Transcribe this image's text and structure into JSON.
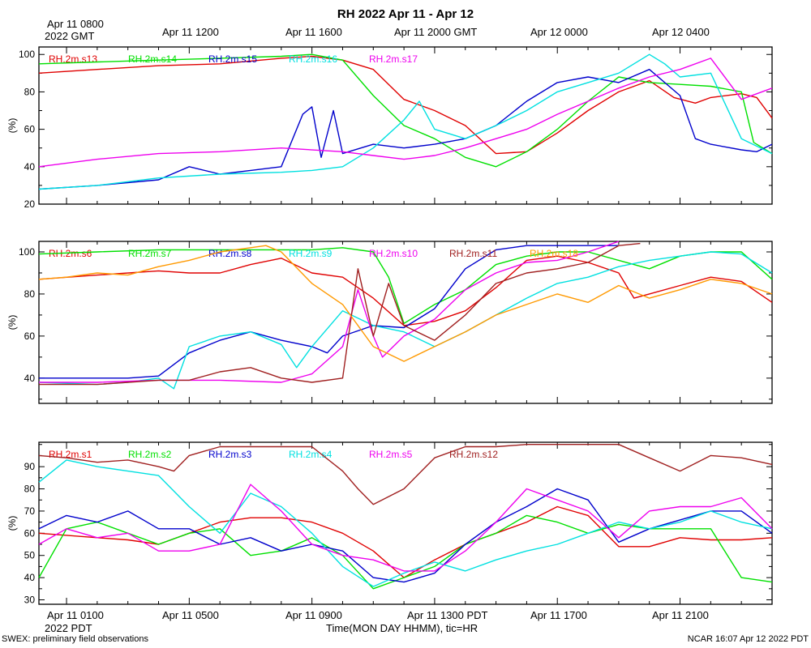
{
  "title": "RH 2022 Apr 11 - Apr 12",
  "gmt_axis": {
    "labels": [
      "Apr 11 0800",
      "Apr 11 1200",
      "Apr 11 1600",
      "Apr 11 2000 GMT",
      "Apr 12 0000",
      "Apr 12 0400"
    ],
    "zone_label": "2022 GMT"
  },
  "pdt_axis": {
    "labels": [
      "Apr 11 0100",
      "Apr 11 0500",
      "Apr 11 0900",
      "Apr 11 1300 PDT",
      "Apr 11 1700",
      "Apr 11 2100"
    ],
    "zone_label": "2022 PDT"
  },
  "xlabel": "Time(MON DAY HHMM), tic=HR",
  "footer_left": "SWEX: preliminary field observations",
  "footer_right": "NCAR 16:07 Apr 12 2022 PDT",
  "chart_data": [
    {
      "type": "line",
      "panel": "top",
      "ylabel": "(%)",
      "x_unit": "hours since Apr 11 0000 PDT",
      "xlim": [
        0.1,
        24.0
      ],
      "ylim": [
        20,
        104
      ],
      "yticks": [
        20,
        40,
        60,
        80,
        100
      ],
      "series": [
        {
          "name": "RH.2m.s13",
          "color": "#e00000",
          "x": [
            0.1,
            2,
            4,
            6,
            8,
            9,
            10,
            11,
            12,
            13,
            14,
            15,
            16,
            17,
            18,
            19,
            20,
            20.8,
            21.5,
            22,
            23,
            23.5,
            24
          ],
          "y": [
            90,
            92,
            94,
            95,
            98,
            99,
            97,
            92,
            76,
            70,
            62,
            47,
            48,
            58,
            70,
            80,
            86,
            77,
            74,
            77,
            79,
            77,
            66
          ]
        },
        {
          "name": "RH.2m.s14",
          "color": "#00e000",
          "x": [
            0.1,
            2,
            4,
            6,
            8,
            9,
            10,
            11,
            12,
            13,
            14,
            15,
            16,
            17,
            18,
            19,
            20,
            21,
            22,
            23,
            23.4,
            24
          ],
          "y": [
            95,
            96,
            97,
            98,
            99,
            100,
            97,
            78,
            62,
            55,
            45,
            40,
            48,
            60,
            75,
            88,
            85,
            84,
            83,
            80,
            53,
            47
          ]
        },
        {
          "name": "RH.2m.s15",
          "color": "#0000cc",
          "x": [
            0.1,
            2,
            4,
            5,
            6,
            7,
            8,
            8.7,
            9,
            9.3,
            9.7,
            10,
            11,
            12,
            13,
            14,
            15,
            16,
            17,
            18,
            19,
            20,
            21,
            21.5,
            22,
            23,
            23.5,
            24
          ],
          "y": [
            28,
            30,
            33,
            40,
            36,
            38,
            40,
            68,
            72,
            45,
            70,
            47,
            52,
            50,
            52,
            55,
            62,
            75,
            85,
            88,
            85,
            92,
            78,
            55,
            52,
            49,
            48,
            52
          ]
        },
        {
          "name": "RH.2m.s16",
          "color": "#00e0e0",
          "x": [
            0.1,
            2,
            4,
            6,
            8,
            9,
            10,
            11,
            12,
            12.5,
            13,
            14,
            15,
            16,
            17,
            18,
            19,
            20,
            20.5,
            21,
            22,
            23,
            24
          ],
          "y": [
            28,
            30,
            34,
            36,
            37,
            38,
            40,
            50,
            65,
            75,
            60,
            55,
            62,
            70,
            80,
            85,
            90,
            100,
            95,
            88,
            90,
            55,
            47
          ]
        },
        {
          "name": "RH.2m.s17",
          "color": "#ee00ee",
          "x": [
            0.1,
            2,
            4,
            6,
            8,
            10,
            11,
            12,
            13,
            14,
            15,
            16,
            17,
            18,
            19,
            20,
            21,
            22,
            23,
            24
          ],
          "y": [
            40,
            44,
            47,
            48,
            50,
            48,
            46,
            44,
            46,
            50,
            55,
            60,
            68,
            75,
            82,
            88,
            92,
            98,
            76,
            82
          ]
        }
      ]
    },
    {
      "type": "line",
      "panel": "middle",
      "ylabel": "(%)",
      "x_unit": "hours since Apr 11 0000 PDT",
      "xlim": [
        0.1,
        24.0
      ],
      "ylim": [
        28,
        105
      ],
      "yticks": [
        40,
        60,
        80,
        100
      ],
      "series": [
        {
          "name": "RH.2m.s6",
          "color": "#e00000",
          "x": [
            0.1,
            2,
            4,
            5,
            6,
            7,
            8,
            9,
            10,
            11,
            12,
            13,
            14,
            15,
            16,
            17,
            18,
            19,
            19.5,
            20,
            21,
            22,
            23,
            24
          ],
          "y": [
            87,
            89,
            91,
            90,
            90,
            94,
            97,
            90,
            88,
            78,
            65,
            67,
            72,
            83,
            96,
            98,
            95,
            90,
            78,
            80,
            84,
            88,
            86,
            76
          ]
        },
        {
          "name": "RH.2m.s7",
          "color": "#00e000",
          "x": [
            0.1,
            2,
            4,
            6,
            8,
            9,
            10,
            11,
            11.5,
            12,
            13,
            14,
            15,
            16,
            17,
            18,
            19,
            20,
            21,
            22,
            23,
            24
          ],
          "y": [
            99,
            100,
            101,
            101,
            101,
            101,
            102,
            100,
            88,
            66,
            75,
            82,
            94,
            98,
            100,
            100,
            96,
            92,
            98,
            100,
            100,
            87
          ]
        },
        {
          "name": "RH.2m.s8",
          "color": "#0000cc",
          "x": [
            0.1,
            2,
            3,
            4,
            5,
            6,
            7,
            8,
            9,
            9.5,
            10,
            11,
            12,
            13,
            14,
            15,
            16,
            17,
            18,
            19
          ],
          "y": [
            40,
            40,
            40,
            41,
            52,
            58,
            62,
            58,
            55,
            52,
            60,
            65,
            64,
            73,
            92,
            101,
            103,
            103,
            103,
            103
          ]
        },
        {
          "name": "RH.2m.s9",
          "color": "#00e0e0",
          "x": [
            0.1,
            2,
            3,
            4,
            4.5,
            5,
            6,
            7,
            8,
            8.5,
            9,
            10,
            11,
            12,
            13,
            14,
            15,
            16,
            17,
            18,
            19,
            20,
            21,
            22,
            23,
            24
          ],
          "y": [
            38,
            37,
            38,
            40,
            35,
            55,
            60,
            62,
            56,
            45,
            55,
            72,
            65,
            62,
            55,
            62,
            70,
            78,
            85,
            88,
            93,
            96,
            98,
            100,
            99,
            90
          ]
        },
        {
          "name": "RH.2m.s10",
          "color": "#ee00ee",
          "x": [
            0.1,
            2,
            4,
            6,
            8,
            9,
            10,
            10.5,
            11,
            11.3,
            12,
            13,
            14,
            15,
            16,
            17,
            18,
            19
          ],
          "y": [
            38,
            38,
            39,
            39,
            38,
            42,
            55,
            82,
            60,
            50,
            60,
            68,
            82,
            90,
            95,
            96,
            100,
            105
          ]
        },
        {
          "name": "RH.2m.s11",
          "color": "#a02020",
          "x": [
            0.1,
            2,
            4,
            5,
            6,
            7,
            8,
            9,
            10,
            10.5,
            11,
            11.5,
            12,
            13,
            14,
            15,
            16,
            17,
            18,
            19,
            19.7
          ],
          "y": [
            37,
            37,
            39,
            39,
            43,
            45,
            40,
            38,
            40,
            92,
            60,
            85,
            65,
            58,
            70,
            85,
            90,
            92,
            95,
            103,
            104
          ]
        },
        {
          "name": "RH.2m.s18",
          "color": "#ff9900",
          "x": [
            0.1,
            1,
            2,
            3,
            4,
            5,
            6,
            7,
            7.5,
            8,
            9,
            10,
            11,
            12,
            13,
            14,
            15,
            16,
            17,
            18,
            19,
            20,
            21,
            22,
            23,
            24
          ],
          "y": [
            87,
            88,
            90,
            89,
            93,
            96,
            100,
            102,
            103,
            100,
            85,
            75,
            55,
            48,
            55,
            62,
            70,
            75,
            80,
            76,
            84,
            78,
            82,
            87,
            85,
            80
          ]
        }
      ]
    },
    {
      "type": "line",
      "panel": "bottom",
      "ylabel": "(%)",
      "x_unit": "hours since Apr 11 0000 PDT",
      "xlim": [
        0.1,
        24.0
      ],
      "ylim": [
        28,
        101
      ],
      "yticks": [
        30,
        40,
        50,
        60,
        70,
        80,
        90
      ],
      "series": [
        {
          "name": "RH.2m.s1",
          "color": "#e00000",
          "x": [
            0.1,
            2,
            3,
            4,
            5,
            6,
            7,
            8,
            9,
            10,
            11,
            12,
            13,
            14,
            15,
            16,
            17,
            18,
            19,
            20,
            21,
            22,
            23,
            24
          ],
          "y": [
            60,
            58,
            57,
            55,
            60,
            65,
            67,
            67,
            65,
            60,
            52,
            40,
            48,
            55,
            60,
            65,
            72,
            68,
            54,
            54,
            58,
            57,
            57,
            58
          ]
        },
        {
          "name": "RH.2m.s2",
          "color": "#00e000",
          "x": [
            0.1,
            1,
            2,
            3,
            4,
            5,
            6,
            7,
            8,
            9,
            10,
            11,
            12,
            13,
            14,
            15,
            16,
            17,
            18,
            19,
            20,
            21,
            22,
            23,
            24
          ],
          "y": [
            40,
            62,
            65,
            60,
            55,
            60,
            62,
            50,
            52,
            58,
            50,
            35,
            40,
            45,
            55,
            60,
            68,
            65,
            60,
            64,
            62,
            62,
            62,
            40,
            38
          ]
        },
        {
          "name": "RH.2m.s3",
          "color": "#0000cc",
          "x": [
            0.1,
            1,
            2,
            3,
            4,
            5,
            6,
            7,
            8,
            9,
            10,
            11,
            12,
            13,
            14,
            15,
            16,
            17,
            18,
            19,
            20,
            21,
            22,
            23,
            24
          ],
          "y": [
            62,
            68,
            65,
            70,
            62,
            62,
            55,
            58,
            52,
            55,
            52,
            40,
            38,
            42,
            55,
            65,
            72,
            80,
            75,
            56,
            62,
            66,
            70,
            70,
            60
          ]
        },
        {
          "name": "RH.2m.s4",
          "color": "#00e0e0",
          "x": [
            0.1,
            1,
            2,
            3,
            4,
            5,
            6,
            7,
            8,
            9,
            10,
            11,
            12,
            13,
            14,
            15,
            16,
            17,
            18,
            19,
            20,
            21,
            22,
            23,
            24
          ],
          "y": [
            83,
            93,
            90,
            88,
            86,
            72,
            60,
            78,
            72,
            60,
            45,
            36,
            42,
            47,
            43,
            48,
            52,
            55,
            60,
            65,
            62,
            65,
            70,
            65,
            62
          ]
        },
        {
          "name": "RH.2m.s5",
          "color": "#ee00ee",
          "x": [
            0.1,
            1,
            2,
            3,
            4,
            5,
            6,
            7,
            8,
            9,
            10,
            11,
            12,
            13,
            14,
            15,
            16,
            17,
            18,
            19,
            20,
            21,
            22,
            23,
            24
          ],
          "y": [
            55,
            62,
            58,
            60,
            52,
            52,
            55,
            82,
            70,
            55,
            50,
            48,
            43,
            43,
            52,
            65,
            80,
            75,
            70,
            58,
            70,
            72,
            72,
            76,
            62
          ]
        },
        {
          "name": "RH.2m.s12",
          "color": "#a02020",
          "x": [
            0.1,
            1,
            2,
            3,
            4,
            4.5,
            5,
            6,
            7,
            8,
            9,
            10,
            10.5,
            11,
            12,
            13,
            14,
            15,
            16,
            17,
            18,
            19,
            20,
            21,
            22,
            23,
            24
          ],
          "y": [
            95,
            94,
            92,
            93,
            90,
            88,
            95,
            99,
            99,
            99,
            99,
            88,
            80,
            73,
            80,
            94,
            99,
            99,
            100,
            100,
            100,
            100,
            94,
            88,
            95,
            94,
            91
          ]
        }
      ]
    }
  ]
}
